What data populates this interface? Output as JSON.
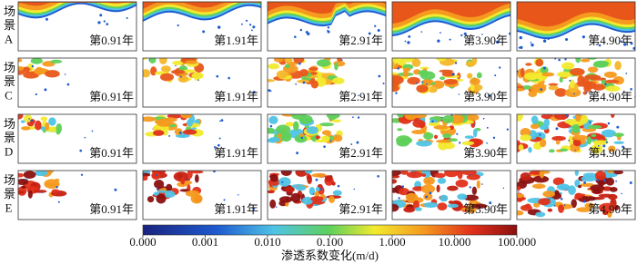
{
  "rows": [
    {
      "label": "场景A",
      "panels": [
        "第0.91年",
        "第1.91年",
        "第2.91年",
        "第3.90年",
        "第4.90年"
      ]
    },
    {
      "label": "场景C",
      "panels": [
        "第0.91年",
        "第1.91年",
        "第2.91年",
        "第3.90年",
        "第4.90年"
      ]
    },
    {
      "label": "场景D",
      "panels": [
        "第0.91年",
        "第1.91年",
        "第2.91年",
        "第3.90年",
        "第4.90年"
      ]
    },
    {
      "label": "场景E",
      "panels": [
        "第0.91年",
        "第1.91年",
        "第2.91年",
        "第3.90年",
        "第4.90年"
      ]
    }
  ],
  "colorbar": {
    "label": "渗透系数变化(m/d)",
    "ticks": [
      "0.000",
      "0.001",
      "0.010",
      "0.100",
      "1.000",
      "10.000",
      "100.000"
    ]
  }
}
